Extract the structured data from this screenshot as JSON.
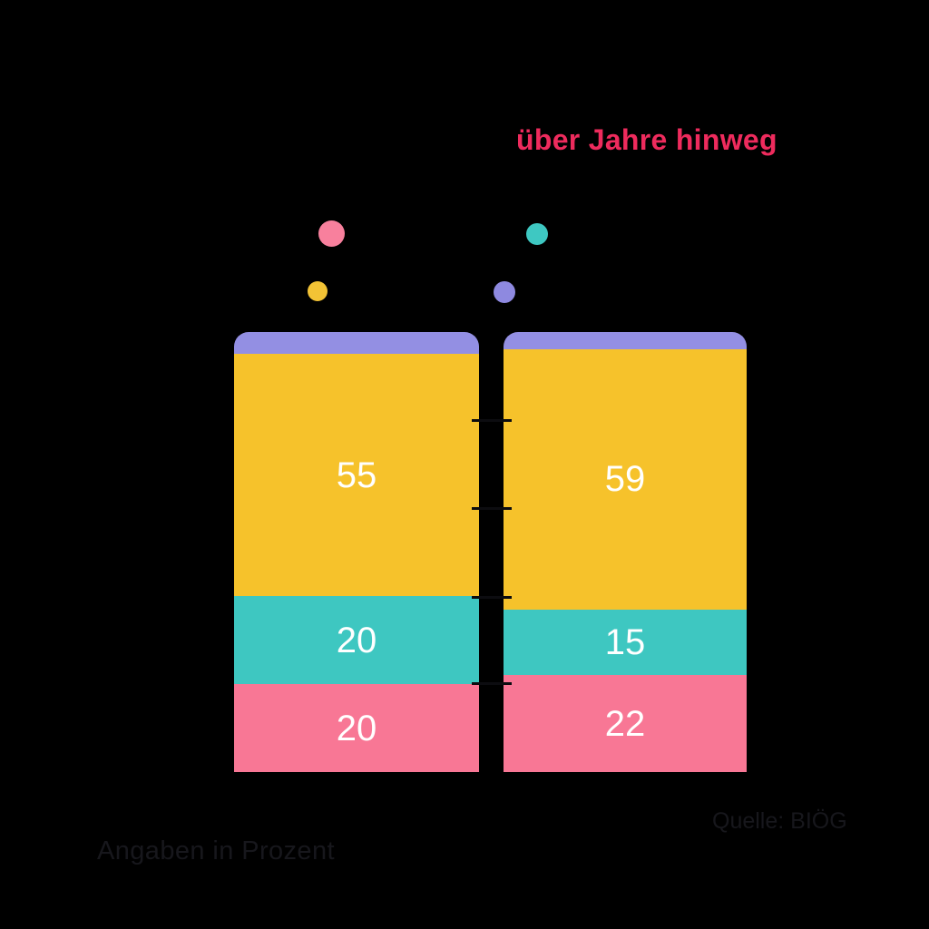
{
  "background_color": "#000000",
  "title": {
    "visible_text": "über Jahre hinweg",
    "color": "#EE2B5D"
  },
  "legend": {
    "dots": [
      {
        "name": "pink",
        "color": "#F8809D"
      },
      {
        "name": "yellow",
        "color": "#F3C335"
      },
      {
        "name": "teal",
        "color": "#3EC8C2"
      },
      {
        "name": "purple",
        "color": "#8E89E0"
      }
    ]
  },
  "chart_data": {
    "type": "bar",
    "subtype": "stacked-columns",
    "orientation": "vertical",
    "columns": 2,
    "categories": [
      "",
      ""
    ],
    "series": [
      {
        "name": "purple-top-cap",
        "color": "#938FE3",
        "values": [
          5,
          4
        ],
        "labels": [
          "",
          ""
        ]
      },
      {
        "name": "yellow",
        "color": "#F6C22B",
        "values": [
          55,
          59
        ],
        "labels": [
          "55",
          "59"
        ]
      },
      {
        "name": "teal",
        "color": "#3EC7C1",
        "values": [
          20,
          15
        ],
        "labels": [
          "20",
          "15"
        ]
      },
      {
        "name": "pink",
        "color": "#F87795",
        "values": [
          20,
          22
        ],
        "labels": [
          "20",
          "22"
        ]
      }
    ],
    "stack_order_top_to_bottom": [
      "purple-top-cap",
      "yellow",
      "teal",
      "pink"
    ],
    "value_unit": "percent",
    "total_per_column": 100,
    "value_label_color": "#FFFFFF",
    "grid": false,
    "axes_visible": false
  },
  "footer": {
    "source": "Quelle: BIÖG",
    "note": "Angaben in Prozent",
    "text_color": "#17171C"
  }
}
